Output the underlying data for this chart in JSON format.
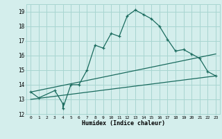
{
  "xlabel": "Humidex (Indice chaleur)",
  "bg_color": "#d4eeec",
  "grid_color": "#a8d5d1",
  "line_color": "#1a6b5e",
  "xlim": [
    -0.5,
    23.5
  ],
  "ylim": [
    12,
    19.5
  ],
  "xticks": [
    0,
    1,
    2,
    3,
    4,
    5,
    6,
    7,
    8,
    9,
    10,
    11,
    12,
    13,
    14,
    15,
    16,
    17,
    18,
    19,
    20,
    21,
    22,
    23
  ],
  "yticks": [
    12,
    13,
    14,
    15,
    16,
    17,
    18,
    19
  ],
  "series1_x": [
    0,
    1,
    3,
    4,
    4,
    5,
    6,
    7,
    8,
    9,
    10,
    11,
    12,
    13,
    14,
    15,
    16,
    17,
    18,
    19,
    20,
    21,
    22,
    23
  ],
  "series1_y": [
    13.5,
    13.1,
    13.6,
    12.7,
    12.4,
    14.0,
    14.0,
    15.0,
    16.7,
    16.5,
    17.5,
    17.3,
    18.7,
    19.1,
    18.8,
    18.5,
    18.0,
    17.1,
    16.3,
    16.4,
    16.1,
    15.8,
    14.9,
    14.6
  ],
  "series2_x": [
    0,
    23
  ],
  "series2_y": [
    13.5,
    16.1
  ],
  "series3_x": [
    0,
    23
  ],
  "series3_y": [
    13.0,
    14.6
  ]
}
